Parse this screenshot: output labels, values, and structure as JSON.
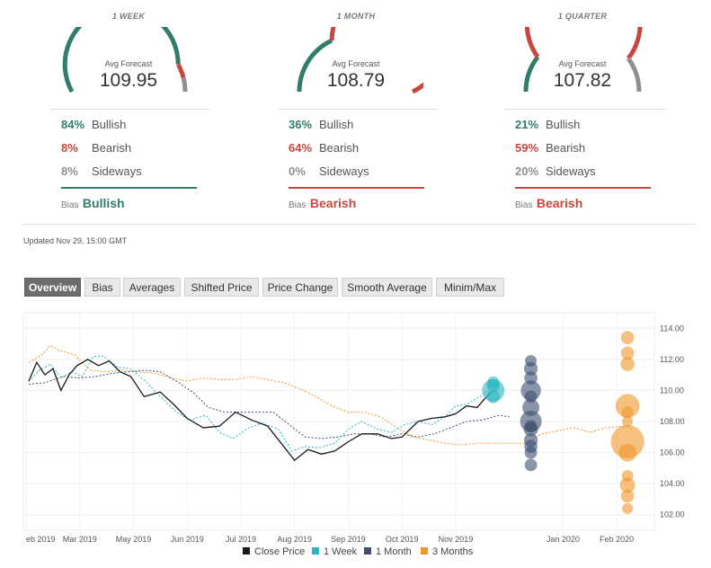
{
  "colors": {
    "bullish": "#2f7d6a",
    "bearish": "#c8473c",
    "sideways": "#8f8f8f",
    "close_price": "#1a1a1a",
    "one_week": "#29b6c0",
    "one_month": "#3c4f70",
    "three_months": "#f0962a"
  },
  "gauges": [
    {
      "period": "1 WEEK",
      "avg_label": "Avg Forecast",
      "avg_value": "109.95",
      "stats": [
        {
          "pct": "84%",
          "label": "Bullish",
          "share": 0.84,
          "color": "#2f7d6a"
        },
        {
          "pct": "8%",
          "label": "Bearish",
          "share": 0.08,
          "color": "#c8473c"
        },
        {
          "pct": "8%",
          "label": "Sideways",
          "share": 0.08,
          "color": "#8f8f8f"
        }
      ],
      "bias_label": "Bias",
      "bias_value": "Bullish",
      "bias_color": "#2f7d6a"
    },
    {
      "period": "1 MONTH",
      "avg_label": "Avg Forecast",
      "avg_value": "108.79",
      "stats": [
        {
          "pct": "36%",
          "label": "Bullish",
          "share": 0.36,
          "color": "#2f7d6a"
        },
        {
          "pct": "64%",
          "label": "Bearish",
          "share": 0.64,
          "color": "#c8473c"
        },
        {
          "pct": "0%",
          "label": "Sideways",
          "share": 0.0,
          "color": "#8f8f8f"
        }
      ],
      "bias_label": "Bias",
      "bias_value": "Bearish",
      "bias_color": "#c8473c"
    },
    {
      "period": "1 QUARTER",
      "avg_label": "Avg Forecast",
      "avg_value": "107.82",
      "stats": [
        {
          "pct": "21%",
          "label": "Bullish",
          "share": 0.21,
          "color": "#2f7d6a"
        },
        {
          "pct": "59%",
          "label": "Bearish",
          "share": 0.59,
          "color": "#c8473c"
        },
        {
          "pct": "20%",
          "label": "Sideways",
          "share": 0.2,
          "color": "#8f8f8f"
        }
      ],
      "bias_label": "Bias",
      "bias_value": "Bearish",
      "bias_color": "#c8473c"
    }
  ],
  "updated": "Updated Nov 29, 15:00 GMT",
  "tabs": [
    "Overview",
    "Bias",
    "Averages",
    "Shifted Price",
    "Price Change",
    "Smooth Average",
    "Minim/Max"
  ],
  "active_tab": "Overview",
  "chart_data": {
    "type": "line",
    "x_labels": [
      "eb 2019",
      "Mar 2019",
      "May 2019",
      "Jun 2019",
      "Jul 2019",
      "Aug 2019",
      "Sep 2019",
      "Oct 2019",
      "Nov 2019",
      "Jan 2020",
      "Feb 2020"
    ],
    "x_label_months": [
      0,
      1,
      2,
      3,
      4,
      5,
      6,
      7,
      8,
      10,
      11
    ],
    "y_ticks": [
      "114.00",
      "112.00",
      "110.00",
      "108.00",
      "106.00",
      "104.00",
      "102.00"
    ],
    "y_tick_values": [
      114,
      112,
      110,
      108,
      106,
      104,
      102
    ],
    "ylim": [
      101,
      115
    ],
    "xlim": [
      -0.05,
      11.7
    ],
    "grid": true,
    "legend_position": "bottom",
    "series": [
      {
        "name": "Close Price",
        "key": "close",
        "style": "solid",
        "color": "#1a1a1a",
        "points": [
          [
            0.05,
            110.6
          ],
          [
            0.2,
            111.8
          ],
          [
            0.35,
            111.0
          ],
          [
            0.5,
            111.4
          ],
          [
            0.65,
            110.0
          ],
          [
            0.8,
            111.0
          ],
          [
            0.95,
            111.6
          ],
          [
            1.15,
            112.0
          ],
          [
            1.35,
            111.6
          ],
          [
            1.55,
            111.9
          ],
          [
            1.75,
            111.2
          ],
          [
            1.95,
            110.9
          ],
          [
            2.2,
            109.6
          ],
          [
            2.5,
            109.9
          ],
          [
            2.75,
            109.1
          ],
          [
            3.0,
            108.2
          ],
          [
            3.3,
            107.6
          ],
          [
            3.6,
            107.7
          ],
          [
            3.9,
            108.6
          ],
          [
            4.2,
            108.1
          ],
          [
            4.5,
            107.7
          ],
          [
            4.75,
            106.6
          ],
          [
            5.0,
            105.5
          ],
          [
            5.25,
            106.2
          ],
          [
            5.5,
            105.9
          ],
          [
            5.75,
            106.1
          ],
          [
            6.0,
            106.7
          ],
          [
            6.25,
            107.2
          ],
          [
            6.55,
            107.2
          ],
          [
            6.8,
            106.9
          ],
          [
            7.0,
            107.0
          ],
          [
            7.3,
            108.0
          ],
          [
            7.55,
            108.2
          ],
          [
            7.8,
            108.3
          ],
          [
            8.0,
            108.5
          ],
          [
            8.2,
            109.0
          ],
          [
            8.4,
            108.9
          ],
          [
            8.65,
            109.9
          ]
        ]
      },
      {
        "name": "1 Week",
        "key": "week",
        "style": "dashed",
        "color": "#29b6c0",
        "points": [
          [
            0.05,
            110.6
          ],
          [
            0.25,
            111.3
          ],
          [
            0.45,
            111.7
          ],
          [
            0.65,
            110.8
          ],
          [
            0.85,
            111.2
          ],
          [
            1.05,
            110.9
          ],
          [
            1.25,
            112.2
          ],
          [
            1.45,
            112.2
          ],
          [
            1.7,
            111.5
          ],
          [
            1.95,
            111.4
          ],
          [
            2.25,
            110.5
          ],
          [
            2.5,
            109.6
          ],
          [
            2.8,
            108.6
          ],
          [
            3.05,
            108.1
          ],
          [
            3.35,
            108.4
          ],
          [
            3.6,
            107.3
          ],
          [
            3.85,
            106.9
          ],
          [
            4.15,
            107.6
          ],
          [
            4.4,
            107.9
          ],
          [
            4.7,
            107.5
          ],
          [
            4.95,
            106.1
          ],
          [
            5.2,
            106.4
          ],
          [
            5.45,
            106.3
          ],
          [
            5.75,
            106.6
          ],
          [
            6.0,
            107.5
          ],
          [
            6.25,
            108.0
          ],
          [
            6.55,
            107.5
          ],
          [
            6.8,
            107.3
          ],
          [
            7.05,
            107.8
          ],
          [
            7.3,
            108.0
          ],
          [
            7.55,
            107.8
          ],
          [
            7.8,
            108.3
          ],
          [
            8.0,
            109.0
          ],
          [
            8.2,
            109.1
          ],
          [
            8.45,
            109.6
          ],
          [
            8.6,
            110.0
          ]
        ]
      },
      {
        "name": "1 Month",
        "key": "month",
        "style": "dashed",
        "color": "#3c4f70",
        "points": [
          [
            0.05,
            110.4
          ],
          [
            0.35,
            110.5
          ],
          [
            0.7,
            110.9
          ],
          [
            1.0,
            110.8
          ],
          [
            1.3,
            110.9
          ],
          [
            1.6,
            111.1
          ],
          [
            1.9,
            111.2
          ],
          [
            2.2,
            111.3
          ],
          [
            2.5,
            111.2
          ],
          [
            2.8,
            110.6
          ],
          [
            3.1,
            109.9
          ],
          [
            3.4,
            108.9
          ],
          [
            3.7,
            108.6
          ],
          [
            4.0,
            108.6
          ],
          [
            4.3,
            108.6
          ],
          [
            4.6,
            108.6
          ],
          [
            4.9,
            107.8
          ],
          [
            5.2,
            107.0
          ],
          [
            5.5,
            106.9
          ],
          [
            5.8,
            107.0
          ],
          [
            6.1,
            107.2
          ],
          [
            6.4,
            107.2
          ],
          [
            6.7,
            107.0
          ],
          [
            7.0,
            107.2
          ],
          [
            7.3,
            107.0
          ],
          [
            7.6,
            107.2
          ],
          [
            7.9,
            107.6
          ],
          [
            8.2,
            108.0
          ],
          [
            8.5,
            108.1
          ],
          [
            8.8,
            108.4
          ],
          [
            9.0,
            108.3
          ]
        ]
      },
      {
        "name": "3 Months",
        "key": "quarter",
        "style": "dashed",
        "color": "#f0962a",
        "points": [
          [
            0.05,
            111.8
          ],
          [
            0.3,
            112.3
          ],
          [
            0.45,
            112.9
          ],
          [
            0.6,
            112.6
          ],
          [
            0.9,
            112.3
          ],
          [
            1.2,
            111.3
          ],
          [
            1.5,
            111.2
          ],
          [
            1.8,
            111.3
          ],
          [
            2.1,
            111.2
          ],
          [
            2.4,
            111.1
          ],
          [
            2.7,
            110.8
          ],
          [
            3.0,
            110.6
          ],
          [
            3.3,
            110.8
          ],
          [
            3.6,
            110.7
          ],
          [
            3.9,
            110.7
          ],
          [
            4.2,
            110.9
          ],
          [
            4.5,
            110.7
          ],
          [
            4.8,
            110.5
          ],
          [
            5.1,
            110.1
          ],
          [
            5.4,
            109.6
          ],
          [
            5.7,
            109.0
          ],
          [
            6.0,
            108.6
          ],
          [
            6.3,
            108.6
          ],
          [
            6.6,
            108.3
          ],
          [
            6.9,
            107.6
          ],
          [
            7.2,
            107.0
          ],
          [
            7.5,
            106.8
          ],
          [
            7.8,
            106.6
          ],
          [
            8.1,
            106.5
          ],
          [
            8.4,
            106.6
          ],
          [
            8.7,
            106.6
          ],
          [
            9.0,
            106.6
          ],
          [
            9.3,
            106.6
          ],
          [
            9.6,
            107.2
          ],
          [
            9.9,
            107.4
          ],
          [
            10.2,
            107.6
          ],
          [
            10.5,
            107.3
          ],
          [
            10.8,
            107.6
          ],
          [
            11.1,
            107.7
          ],
          [
            11.3,
            107.5
          ]
        ]
      }
    ],
    "forecast_bubbles": [
      {
        "series": "1 Week",
        "x": 8.7,
        "points": [
          [
            110.0,
            3
          ],
          [
            109.6,
            0.6
          ],
          [
            110.3,
            0.6
          ],
          [
            110.5,
            0.5
          ]
        ]
      },
      {
        "series": "1 Month",
        "x": 9.4,
        "points": [
          [
            111.9,
            0.4
          ],
          [
            111.4,
            0.7
          ],
          [
            110.0,
            2.2
          ],
          [
            108.9,
            1.4
          ],
          [
            108.0,
            2.7
          ],
          [
            107.5,
            0.8
          ],
          [
            106.8,
            0.7
          ],
          [
            106.4,
            0.6
          ],
          [
            106.0,
            0.5
          ],
          [
            105.2,
            0.5
          ],
          [
            109.6,
            0.5
          ],
          [
            110.8,
            0.6
          ],
          [
            107.7,
            0.5
          ]
        ]
      },
      {
        "series": "3 Months",
        "x": 11.2,
        "points": [
          [
            113.4,
            0.6
          ],
          [
            112.4,
            0.6
          ],
          [
            111.7,
            0.8
          ],
          [
            109.0,
            3.5
          ],
          [
            108.6,
            0.4
          ],
          [
            108.0,
            0.3
          ],
          [
            106.7,
            8.0
          ],
          [
            106.0,
            1.6
          ],
          [
            104.5,
            0.4
          ],
          [
            103.9,
            1.0
          ],
          [
            103.2,
            0.6
          ],
          [
            102.4,
            0.3
          ]
        ]
      }
    ]
  }
}
